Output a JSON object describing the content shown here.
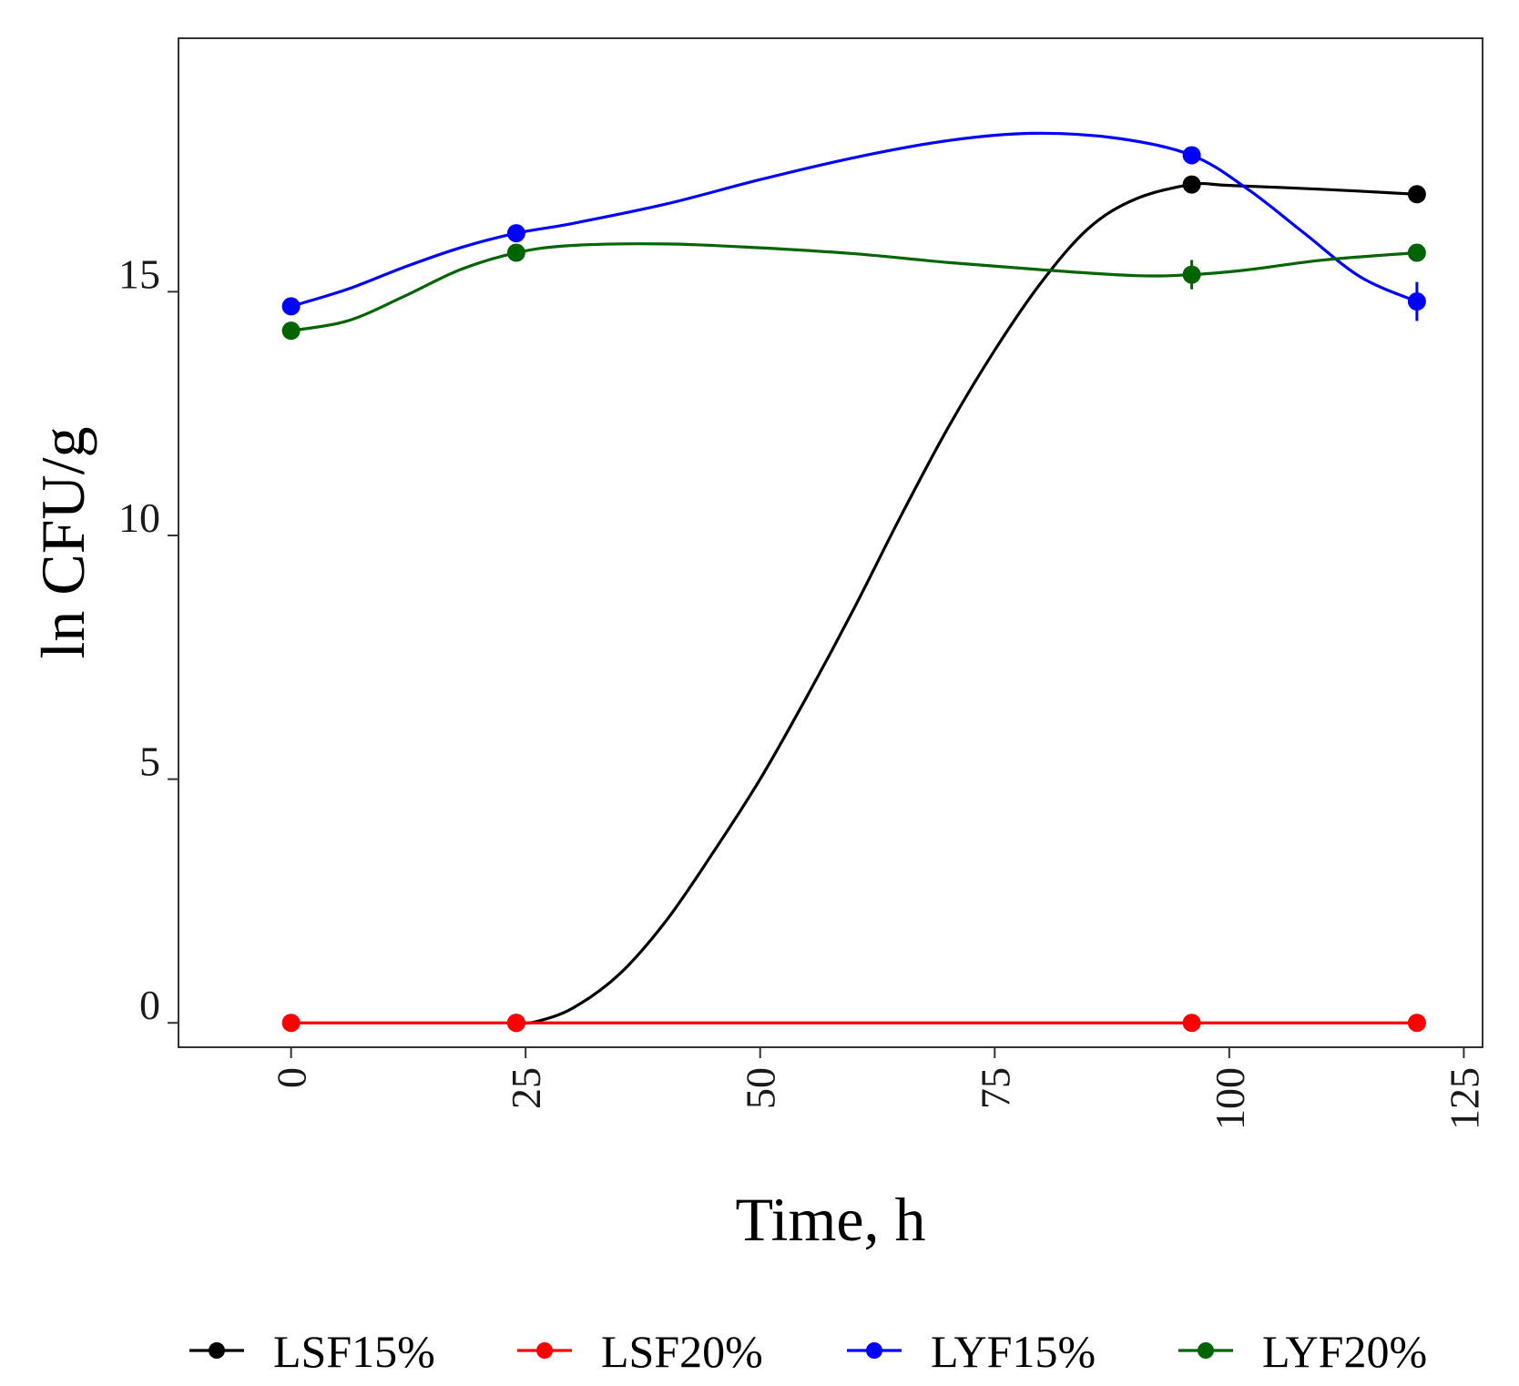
{
  "chart_data": {
    "type": "line",
    "title": "",
    "xlabel": "Time, h",
    "ylabel": "ln CFU/g",
    "xlim": [
      -12,
      127
    ],
    "ylim": [
      -0.5,
      20.2
    ],
    "xticks": [
      0,
      25,
      50,
      75,
      100,
      125
    ],
    "xtick_labels": [
      "0",
      "25",
      "50",
      "75",
      "100",
      "125"
    ],
    "yticks": [
      0,
      5,
      10,
      15
    ],
    "ytick_labels": [
      "0",
      "5",
      "10",
      "15"
    ],
    "grid": false,
    "legend_position": "bottom",
    "x": [
      0,
      24,
      96,
      120
    ],
    "series": [
      {
        "name": "LSF15%",
        "color": "#000000",
        "values": [
          null,
          0,
          17.2,
          17.0
        ],
        "errors": [
          0,
          0,
          0.1,
          0.1
        ],
        "curve_points": [
          [
            24,
            0
          ],
          [
            26,
            0.02
          ],
          [
            30,
            0.3
          ],
          [
            35,
            1.0
          ],
          [
            40,
            2.1
          ],
          [
            45,
            3.5
          ],
          [
            50,
            5.0
          ],
          [
            55,
            6.7
          ],
          [
            60,
            8.5
          ],
          [
            65,
            10.4
          ],
          [
            70,
            12.2
          ],
          [
            75,
            13.8
          ],
          [
            80,
            15.2
          ],
          [
            85,
            16.3
          ],
          [
            90,
            16.9
          ],
          [
            96,
            17.2
          ],
          [
            100,
            17.18
          ],
          [
            110,
            17.1
          ],
          [
            120,
            17.0
          ]
        ]
      },
      {
        "name": "LSF20%",
        "color": "#ff0000",
        "values": [
          0,
          0,
          0,
          0
        ],
        "errors": [
          0,
          0,
          0,
          0
        ],
        "curve_points": [
          [
            0,
            0
          ],
          [
            24,
            0
          ],
          [
            96,
            0
          ],
          [
            120,
            0
          ]
        ]
      },
      {
        "name": "LYF15%",
        "color": "#0000ff",
        "values": [
          14.7,
          16.2,
          17.8,
          14.8
        ],
        "errors": [
          0.1,
          0.1,
          0.1,
          0.4
        ],
        "curve_points": [
          [
            0,
            14.7
          ],
          [
            6,
            15.05
          ],
          [
            12,
            15.5
          ],
          [
            18,
            15.9
          ],
          [
            24,
            16.2
          ],
          [
            30,
            16.4
          ],
          [
            40,
            16.8
          ],
          [
            50,
            17.3
          ],
          [
            60,
            17.75
          ],
          [
            70,
            18.1
          ],
          [
            79,
            18.25
          ],
          [
            88,
            18.15
          ],
          [
            96,
            17.8
          ],
          [
            102,
            17.1
          ],
          [
            108,
            16.2
          ],
          [
            114,
            15.3
          ],
          [
            120,
            14.8
          ]
        ]
      },
      {
        "name": "LYF20%",
        "color": "#006400",
        "values": [
          14.2,
          15.8,
          15.35,
          15.8
        ],
        "errors": [
          0.1,
          0.1,
          0.3,
          0.1
        ],
        "curve_points": [
          [
            0,
            14.2
          ],
          [
            6,
            14.4
          ],
          [
            12,
            14.9
          ],
          [
            18,
            15.45
          ],
          [
            24,
            15.8
          ],
          [
            30,
            15.95
          ],
          [
            40,
            15.98
          ],
          [
            50,
            15.9
          ],
          [
            60,
            15.78
          ],
          [
            70,
            15.6
          ],
          [
            80,
            15.45
          ],
          [
            90,
            15.33
          ],
          [
            96,
            15.35
          ],
          [
            102,
            15.45
          ],
          [
            110,
            15.65
          ],
          [
            120,
            15.8
          ]
        ]
      }
    ]
  }
}
